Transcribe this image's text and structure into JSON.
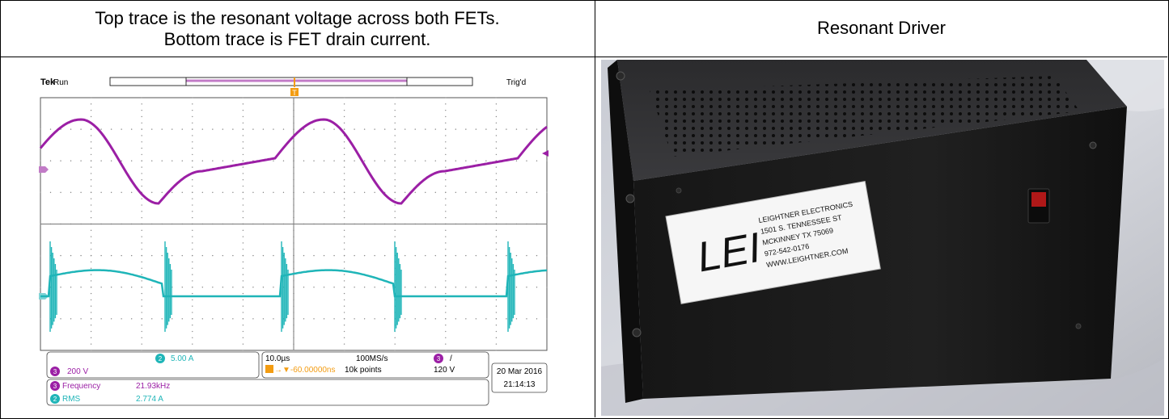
{
  "left_header": {
    "line1": "Top trace is the resonant voltage across both FETs.",
    "line2": "Bottom trace is FET drain current."
  },
  "right_header": {
    "title": "Resonant Driver"
  },
  "scope": {
    "brand": "Tek",
    "run_state": "Run",
    "trigger_status": "Trig'd",
    "trigger_marker": "T",
    "ch3_marker": "3",
    "ch2_marker": "2",
    "ch2_scale": "5.00 A",
    "ch3_scale": "200 V",
    "timebase": "10.0µs",
    "trigger_offset": "→▼-60.00000ns",
    "sample_rate": "100MS/s",
    "record_length": "10k points",
    "trigger_symbol": "/",
    "trigger_level": "120 V",
    "meas1_label": "Frequency",
    "meas1_value": "21.93kHz",
    "meas2_label": "RMS",
    "meas2_value": "2.774 A",
    "date": "20 Mar 2016",
    "time": "21:14:13",
    "colors": {
      "ch3": "#9b1fa5",
      "ch2": "#1fb5b8",
      "trigger": "#f39c12"
    }
  },
  "photo": {
    "label_lines": [
      "LEIGHTNER ELECTRONICS",
      "1501 S. TENNESSEE ST",
      "MCKINNEY TX 75069",
      "972-542-0176",
      "WWW.LEIGHTNER.COM"
    ],
    "logo": "LEI"
  }
}
